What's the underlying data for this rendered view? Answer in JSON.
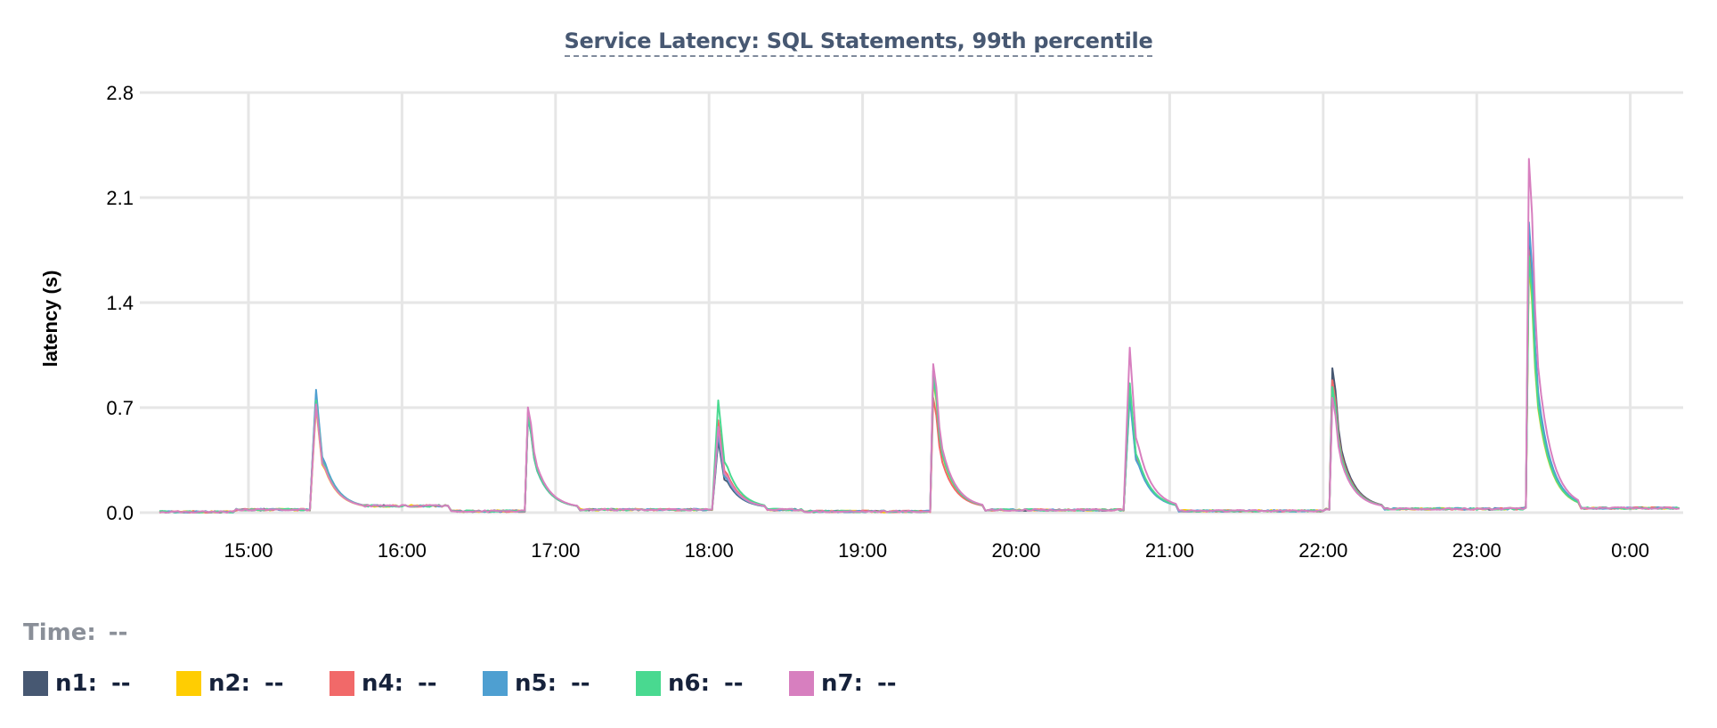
{
  "chart_data": {
    "type": "line",
    "title": "Service Latency: SQL Statements, 99th percentile",
    "ylabel": "latency (s)",
    "xlabel": "",
    "ylim": [
      0,
      2.8
    ],
    "yticks": [
      "0.0",
      "0.7",
      "1.4",
      "2.1",
      "2.8"
    ],
    "xlim": [
      14.42,
      24.33
    ],
    "xticks": [
      {
        "label": "15:00",
        "hour": 15
      },
      {
        "label": "16:00",
        "hour": 16
      },
      {
        "label": "17:00",
        "hour": 17
      },
      {
        "label": "18:00",
        "hour": 18
      },
      {
        "label": "19:00",
        "hour": 19
      },
      {
        "label": "20:00",
        "hour": 20
      },
      {
        "label": "21:00",
        "hour": 21
      },
      {
        "label": "22:00",
        "hour": 22
      },
      {
        "label": "23:00",
        "hour": 23
      },
      {
        "label": "0:00",
        "hour": 24
      }
    ],
    "grid": true,
    "legend_placement": "bottom-left",
    "series": [
      {
        "name": "n1",
        "color": "#475872",
        "peaks": [
          0.88,
          0.72,
          0.55,
          1.02,
          0.95,
          1.07,
          2.1
        ]
      },
      {
        "name": "n2",
        "color": "#ffcd02",
        "peaks": [
          0.8,
          0.7,
          0.62,
          0.98,
          0.9,
          0.95,
          1.85
        ]
      },
      {
        "name": "n4",
        "color": "#f16969",
        "peaks": [
          0.9,
          0.74,
          0.7,
          0.85,
          0.92,
          0.98,
          1.95
        ]
      },
      {
        "name": "n5",
        "color": "#4e9fd1",
        "peaks": [
          0.93,
          0.7,
          0.6,
          1.05,
          0.88,
          0.9,
          2.15
        ]
      },
      {
        "name": "n6",
        "color": "#49d990",
        "peaks": [
          0.85,
          0.72,
          0.85,
          1.0,
          0.98,
          0.93,
          1.9
        ]
      },
      {
        "name": "n7",
        "color": "#d77fbf",
        "peaks": [
          0.82,
          0.78,
          0.65,
          1.1,
          1.25,
          0.85,
          2.62
        ]
      }
    ],
    "spike_hours": [
      15.43,
      16.82,
      18.05,
      19.46,
      20.73,
      22.06,
      23.34
    ]
  },
  "hover": {
    "time_label": "Time:",
    "time_value": "--"
  },
  "legend": [
    {
      "name": "n1:",
      "value": "--",
      "color": "#475872"
    },
    {
      "name": "n2:",
      "value": "--",
      "color": "#ffcd02"
    },
    {
      "name": "n4:",
      "value": "--",
      "color": "#f16969"
    },
    {
      "name": "n5:",
      "value": "--",
      "color": "#4e9fd1"
    },
    {
      "name": "n6:",
      "value": "--",
      "color": "#49d990"
    },
    {
      "name": "n7:",
      "value": "--",
      "color": "#d77fbf"
    }
  ]
}
